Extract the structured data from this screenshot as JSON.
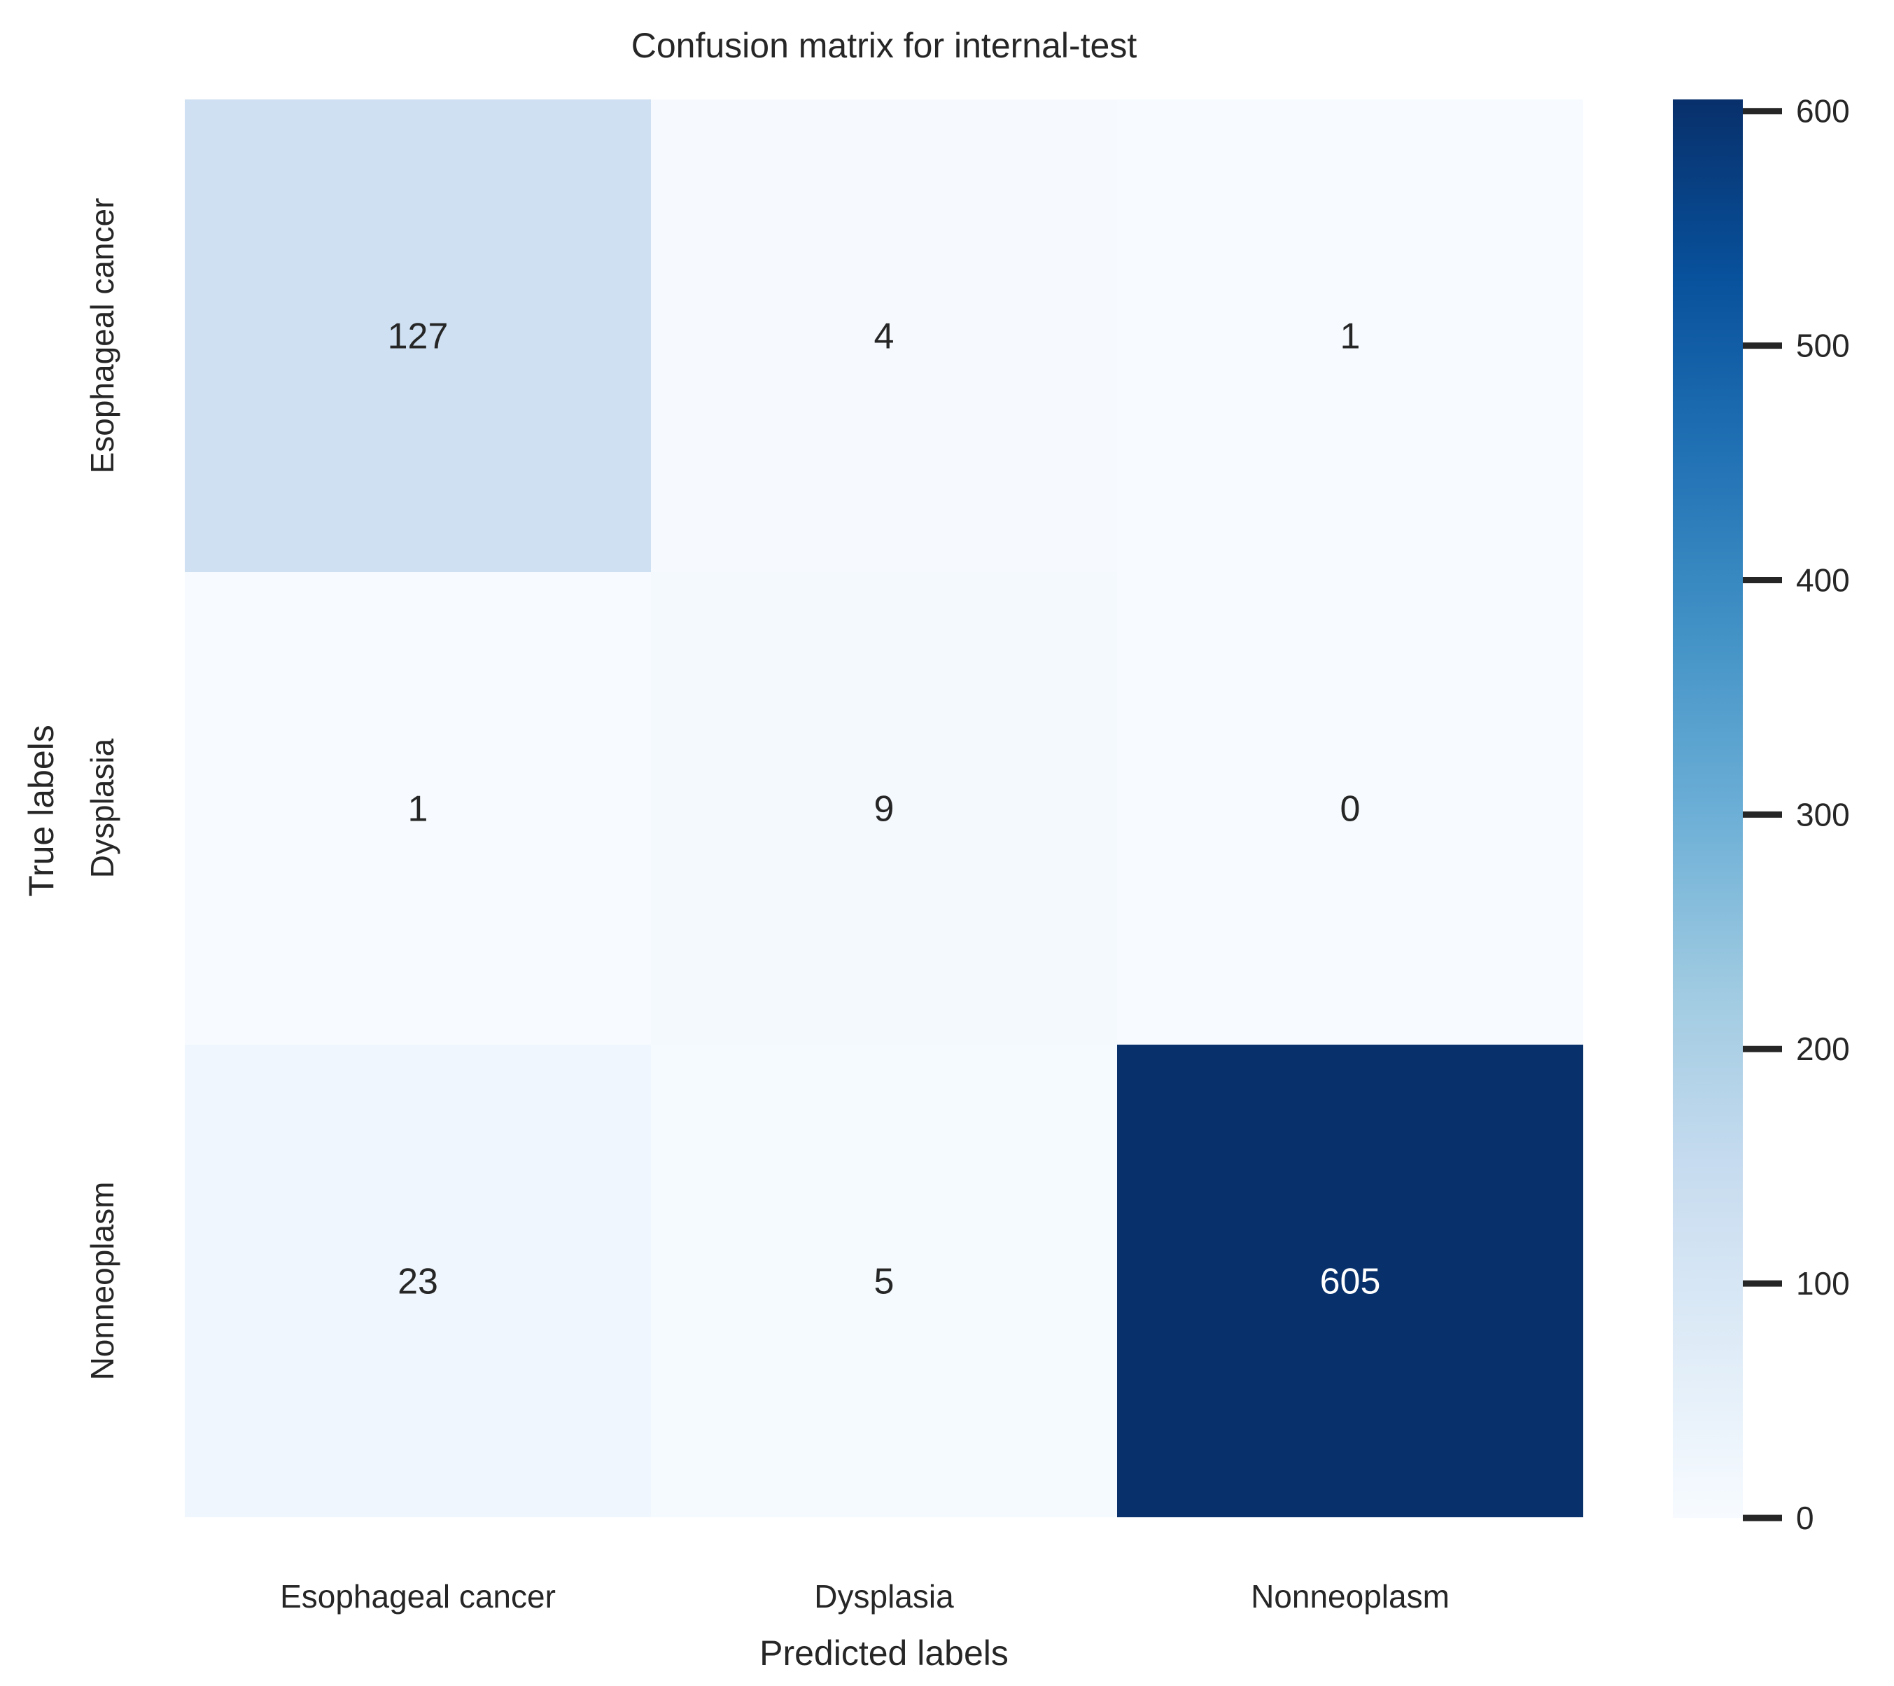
{
  "chart_data": {
    "type": "heatmap",
    "title": "Confusion matrix for internal-test",
    "xlabel": "Predicted labels",
    "ylabel": "True labels",
    "x_categories": [
      "Esophageal cancer",
      "Dysplasia",
      "Nonneoplasm"
    ],
    "y_categories": [
      "Esophageal cancer",
      "Dysplasia",
      "Nonneoplasm"
    ],
    "values": [
      [
        127,
        4,
        1
      ],
      [
        1,
        9,
        0
      ],
      [
        23,
        5,
        605
      ]
    ],
    "colorbar": {
      "min": 0,
      "max": 605,
      "ticks": [
        0,
        100,
        200,
        300,
        400,
        500,
        600
      ],
      "colormap": "Blues",
      "colors": [
        "#f7fbff",
        "#deebf7",
        "#c6dbef",
        "#9ecae1",
        "#6baed6",
        "#4292c6",
        "#2171b5",
        "#08519c",
        "#08306b"
      ]
    },
    "grid": false
  }
}
